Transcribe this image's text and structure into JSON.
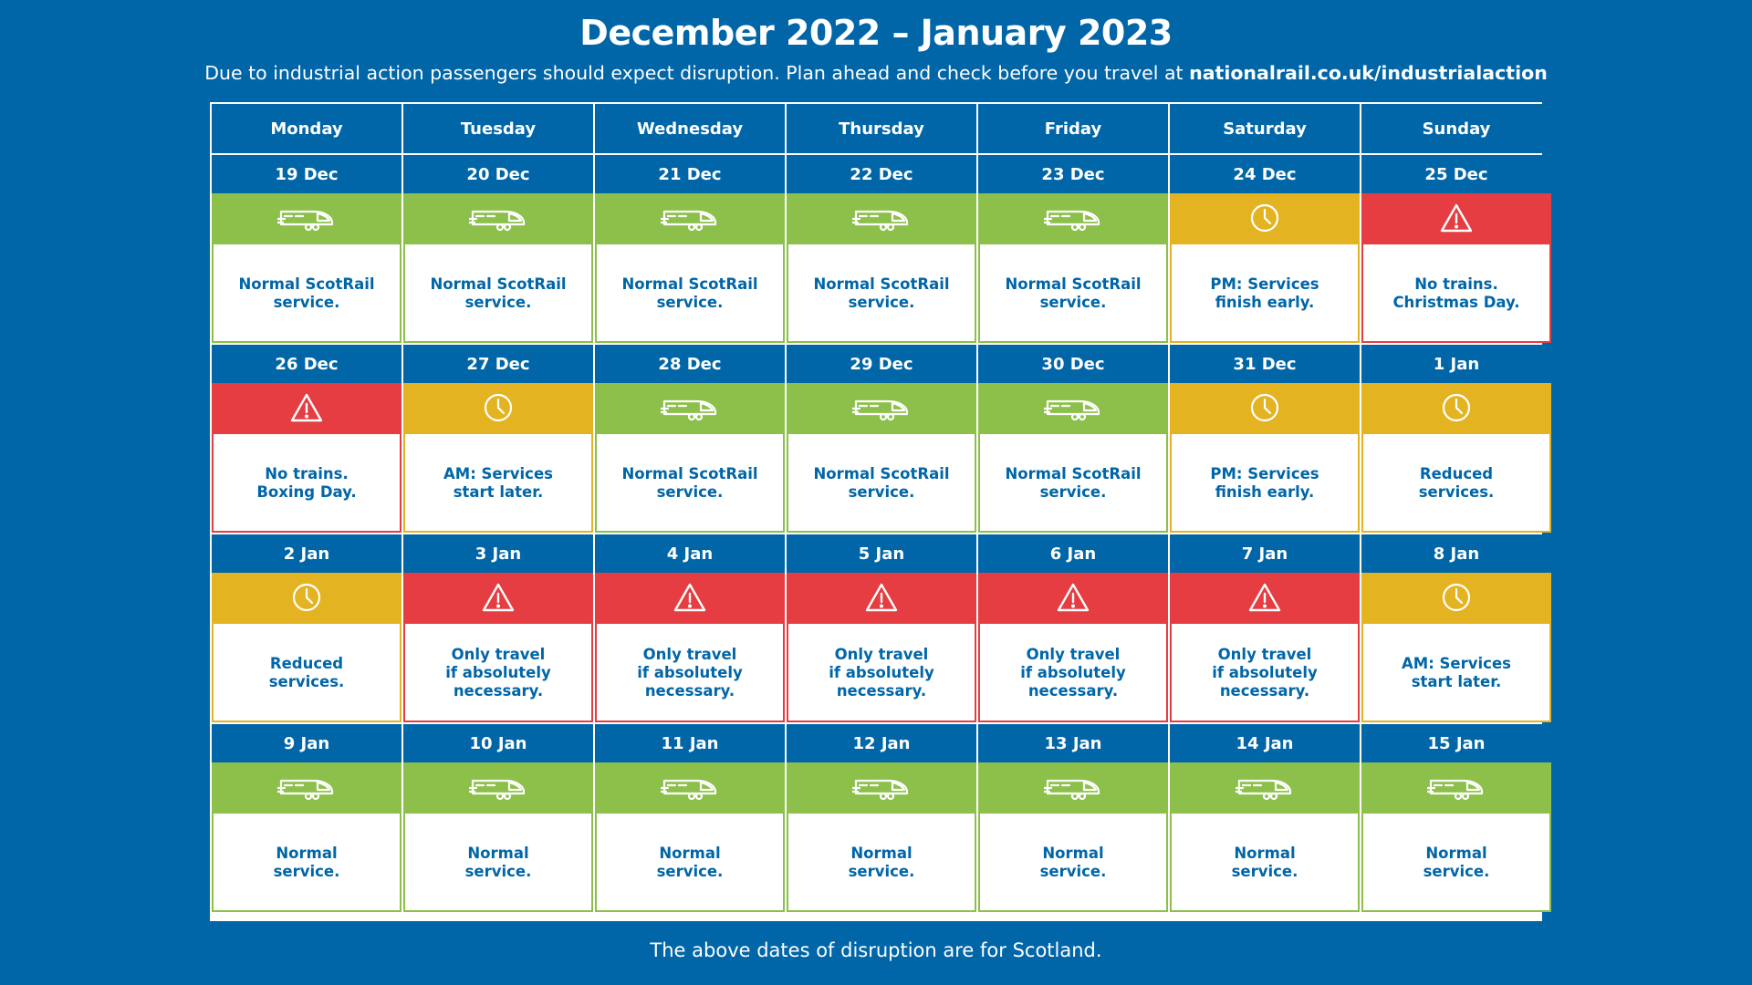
{
  "title": "December 2022  – January 2023",
  "subtitle": {
    "text": "Due to industrial action passengers should expect disruption. Plan ahead and check before you travel at ",
    "url": "nationalrail.co.uk/industrialaction"
  },
  "footer": "The above dates of disruption are for Scotland.",
  "colors": {
    "background": "#0066a8",
    "normal": "#8cc04b",
    "reduced": "#e4b321",
    "no_service": "#e53d41"
  },
  "icons": {
    "normal": "train-icon",
    "reduced": "clock-icon",
    "no_service": "warning-icon"
  },
  "weekdays": [
    "Monday",
    "Tuesday",
    "Wednesday",
    "Thursday",
    "Friday",
    "Saturday",
    "Sunday"
  ],
  "weeks": [
    [
      {
        "date": "19 Dec",
        "status": "normal",
        "text": "Normal ScotRail\nservice."
      },
      {
        "date": "20 Dec",
        "status": "normal",
        "text": "Normal ScotRail\nservice."
      },
      {
        "date": "21 Dec",
        "status": "normal",
        "text": "Normal ScotRail\nservice."
      },
      {
        "date": "22 Dec",
        "status": "normal",
        "text": "Normal ScotRail\nservice."
      },
      {
        "date": "23 Dec",
        "status": "normal",
        "text": "Normal ScotRail\nservice."
      },
      {
        "date": "24 Dec",
        "status": "reduced",
        "text": "PM: Services\nfinish early."
      },
      {
        "date": "25 Dec",
        "status": "no_service",
        "text": "No trains.\nChristmas Day."
      }
    ],
    [
      {
        "date": "26 Dec",
        "status": "no_service",
        "text": "No trains.\nBoxing Day."
      },
      {
        "date": "27 Dec",
        "status": "reduced",
        "text": "AM: Services\nstart later."
      },
      {
        "date": "28 Dec",
        "status": "normal",
        "text": "Normal ScotRail\nservice."
      },
      {
        "date": "29 Dec",
        "status": "normal",
        "text": "Normal ScotRail\nservice."
      },
      {
        "date": "30 Dec",
        "status": "normal",
        "text": "Normal ScotRail\nservice."
      },
      {
        "date": "31 Dec",
        "status": "reduced",
        "text": "PM: Services\nfinish early."
      },
      {
        "date": "1 Jan",
        "status": "reduced",
        "text": "Reduced\nservices."
      }
    ],
    [
      {
        "date": "2 Jan",
        "status": "reduced",
        "text": "Reduced\nservices."
      },
      {
        "date": "3 Jan",
        "status": "no_service",
        "text": "Only travel\nif absolutely\nnecessary."
      },
      {
        "date": "4 Jan",
        "status": "no_service",
        "text": "Only travel\nif absolutely\nnecessary."
      },
      {
        "date": "5 Jan",
        "status": "no_service",
        "text": "Only travel\nif absolutely\nnecessary."
      },
      {
        "date": "6 Jan",
        "status": "no_service",
        "text": "Only travel\nif absolutely\nnecessary."
      },
      {
        "date": "7 Jan",
        "status": "no_service",
        "text": "Only travel\nif absolutely\nnecessary."
      },
      {
        "date": "8 Jan",
        "status": "reduced",
        "text": "AM: Services\nstart later."
      }
    ],
    [
      {
        "date": "9 Jan",
        "status": "normal",
        "text": "Normal\nservice."
      },
      {
        "date": "10 Jan",
        "status": "normal",
        "text": "Normal\nservice."
      },
      {
        "date": "11 Jan",
        "status": "normal",
        "text": "Normal\nservice."
      },
      {
        "date": "12 Jan",
        "status": "normal",
        "text": "Normal\nservice."
      },
      {
        "date": "13 Jan",
        "status": "normal",
        "text": "Normal\nservice."
      },
      {
        "date": "14 Jan",
        "status": "normal",
        "text": "Normal\nservice."
      },
      {
        "date": "15 Jan",
        "status": "normal",
        "text": "Normal\nservice."
      }
    ]
  ]
}
